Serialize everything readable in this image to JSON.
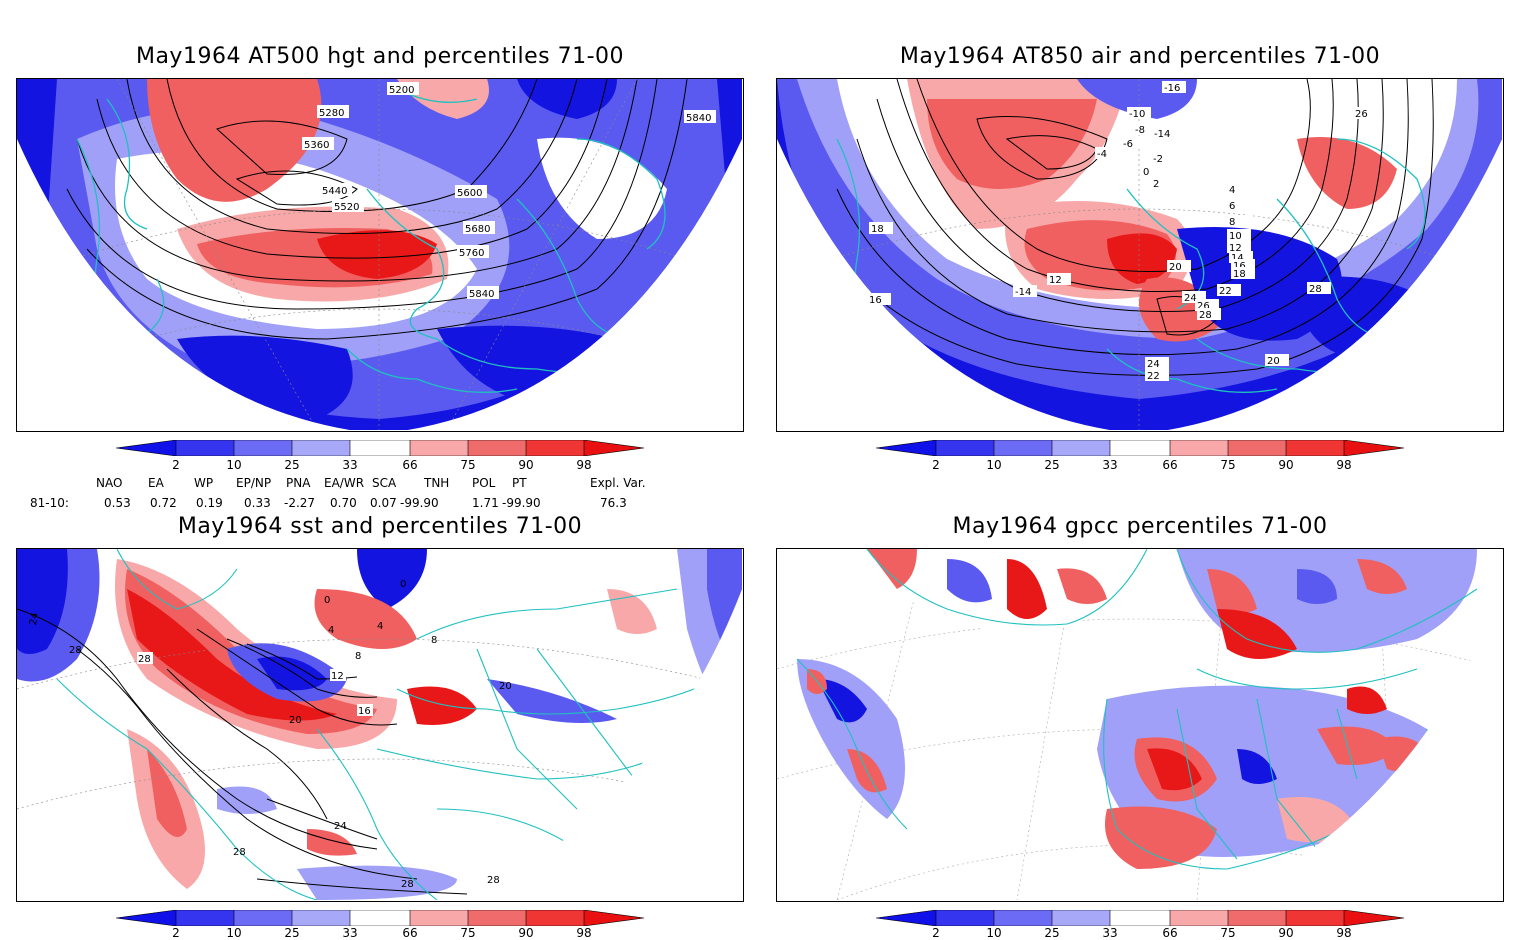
{
  "panels": [
    {
      "id": "p1",
      "title": "May1964 AT500 hgt and percentiles 71-00",
      "contour_labels": [
        "5200",
        "5280",
        "5360",
        "5440",
        "5520",
        "5600",
        "5680",
        "5760",
        "5840",
        "5840"
      ]
    },
    {
      "id": "p2",
      "title": "May1964 AT850 air and percentiles 71-00",
      "contour_labels": [
        "-16",
        "-14",
        "-10",
        "-8",
        "-6",
        "-4",
        "-2",
        "0",
        "2",
        "4",
        "6",
        "8",
        "10",
        "12",
        "14",
        "16",
        "18",
        "20",
        "22",
        "24",
        "26",
        "28",
        "16",
        "18",
        "20",
        "22",
        "24",
        "26",
        "28",
        "12",
        "-14"
      ]
    },
    {
      "id": "p3",
      "title": "May1964 sst and percentiles 71-00",
      "contour_labels": [
        "24",
        "28",
        "28",
        "0",
        "0",
        "4",
        "4",
        "8",
        "8",
        "12",
        "16",
        "20",
        "20",
        "24",
        "28",
        "28",
        "28"
      ]
    },
    {
      "id": "p4",
      "title": "May1964 gpcc percentiles 71-00",
      "contour_labels": []
    }
  ],
  "colorbar": {
    "labels": [
      "2",
      "10",
      "25",
      "33",
      "66",
      "75",
      "90",
      "98"
    ],
    "colors": {
      "lt2": "#1010e8",
      "c2_10": "#3535f0",
      "c10_25": "#6b6bf5",
      "c25_33": "#a8a8f8",
      "c66_75": "#f8a8a8",
      "c75_90": "#f06b6b",
      "c90_98": "#f03535",
      "gt98": "#e81010"
    }
  },
  "indices": {
    "row_label": "81-10:",
    "names": [
      "NAO",
      "EA",
      "WP",
      "EP/NP",
      "PNA",
      "EA/WR",
      "SCA",
      "TNH",
      "POL",
      "PT",
      "Expl. Var."
    ],
    "values": [
      "0.53",
      "0.72",
      "0.19",
      "0.33",
      "-2.27",
      "0.70",
      "0.07",
      "-99.90",
      "1.71",
      "-99.90",
      "76.3"
    ]
  },
  "colors": {
    "coast": "#20c0c0",
    "contour": "#000000",
    "strong_blue": "#1414e0",
    "mid_blue": "#5a5af0",
    "light_blue": "#a0a0f8",
    "strong_red": "#e81818",
    "mid_red": "#f06060",
    "light_red": "#f8a8a8"
  }
}
